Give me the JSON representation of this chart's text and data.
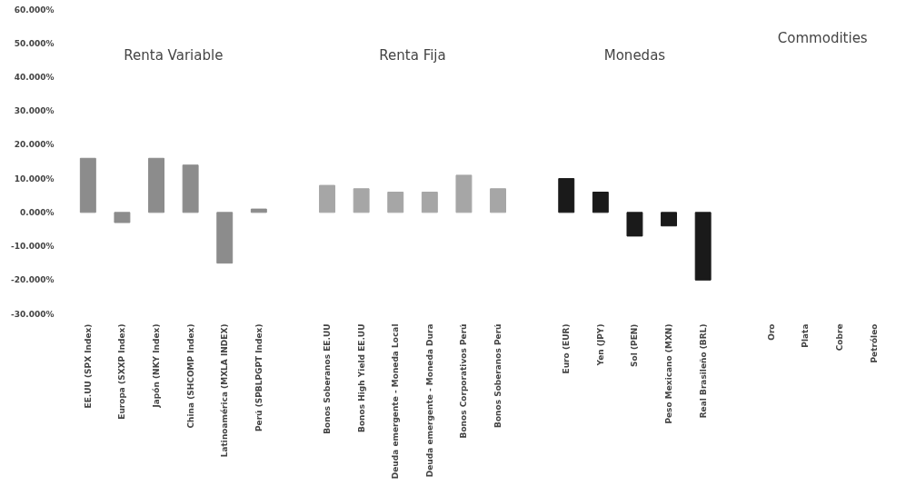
{
  "chart_data": {
    "type": "bar",
    "categories": [
      "EE.UU (SPX Index)",
      "Europa (SXXP Index)",
      "Japón (NKY Index)",
      "China (SHCOMP Index)",
      "Latinoamérica (MXLA INDEX)",
      "Perú (SPBLPGPT Index)",
      null,
      "Bonos Soberanos EE.UU",
      "Bonos High Yield EE.UU",
      "Deuda emergente - Moneda Local",
      "Deuda emergente - Moneda Dura",
      "Bonos Corporativos Perú",
      "Bonos Soberanos Perú",
      null,
      "Euro (EUR)",
      "Yen (JPY)",
      "Sol (PEN)",
      "Peso Mexicano (MXN)",
      "Real Brasileño (BRL)",
      null,
      "Oro",
      "Plata",
      "Cobre",
      "Petróleo"
    ],
    "values": [
      16,
      -3,
      16,
      14,
      -15,
      1,
      null,
      8,
      7,
      6,
      6,
      11,
      7,
      null,
      10,
      6,
      -7,
      -4,
      -20,
      null,
      null,
      null,
      null,
      null
    ],
    "colors": [
      "#8c8c8c",
      "#8c8c8c",
      "#8c8c8c",
      "#8c8c8c",
      "#8c8c8c",
      "#8c8c8c",
      "#ffffff",
      "#a6a6a6",
      "#a6a6a6",
      "#a6a6a6",
      "#a6a6a6",
      "#a6a6a6",
      "#a6a6a6",
      "#ffffff",
      "#1a1a1a",
      "#1a1a1a",
      "#1a1a1a",
      "#1a1a1a",
      "#1a1a1a",
      "#ffffff",
      "#1a1a1a",
      "#1a1a1a",
      "#1a1a1a",
      "#1a1a1a"
    ],
    "annotations": [
      "Renta Variable",
      "Renta Fija",
      "Monedas",
      "Commodities"
    ],
    "ylim": [
      -30,
      60
    ],
    "yticks": [
      {
        "value": -30,
        "label": "-30.000%"
      },
      {
        "value": -20,
        "label": "-20.000%"
      },
      {
        "value": -10,
        "label": "-10.000%"
      },
      {
        "value": 0,
        "label": "0.000%"
      },
      {
        "value": 10,
        "label": "10.000%"
      },
      {
        "value": 20,
        "label": "20.000%"
      },
      {
        "value": 30,
        "label": "30.000%"
      },
      {
        "value": 40,
        "label": "40.000%"
      },
      {
        "value": 50,
        "label": "50.000%"
      },
      {
        "value": 60,
        "label": "60.000%"
      }
    ],
    "grid": false
  }
}
